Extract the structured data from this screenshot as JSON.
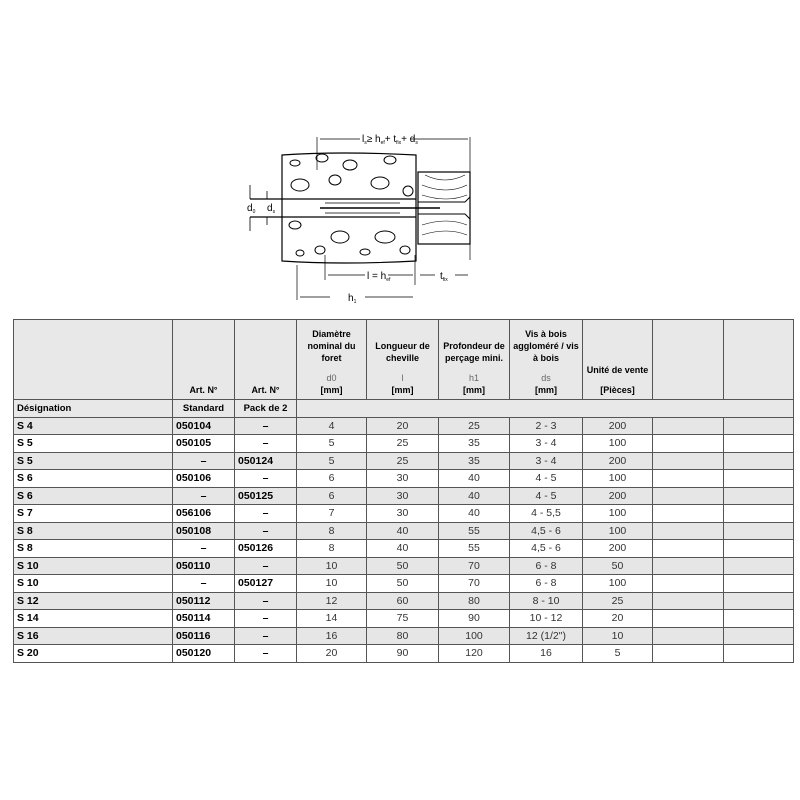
{
  "diagram": {
    "labels": {
      "ls": "l",
      "ls_formula": "≥ h",
      "hef_sub": "ef",
      "plus_tfix": "+ t",
      "tfix_sub": "fix",
      "plus_ds": "+ d",
      "ds_sub": "s",
      "d0": "d",
      "d0_sub": "0",
      "ds": "d",
      "l_eq_hef": "l = h",
      "h1": "h",
      "h1_sub": "1",
      "tfix": "t"
    }
  },
  "table": {
    "headers": [
      {
        "title": "",
        "sym": "",
        "unit": "Art. N°"
      },
      {
        "title": "",
        "sym": "",
        "unit": "Art. N°"
      },
      {
        "title": "Diamètre nominal du foret",
        "sym": "d0",
        "unit": "[mm]"
      },
      {
        "title": "Longueur de cheville",
        "sym": "l",
        "unit": "[mm]"
      },
      {
        "title": "Profondeur de perçage mini.",
        "sym": "h1",
        "unit": "[mm]"
      },
      {
        "title": "Vis à bois aggloméré / vis à bois",
        "sym": "ds",
        "unit": "[mm]"
      },
      {
        "title": "Unité de vente",
        "sym": "",
        "unit": "[Pièces]"
      }
    ],
    "subheaders": [
      "Désignation",
      "Standard",
      "Pack de 2"
    ],
    "rows": [
      [
        "S 4",
        "050104",
        "–",
        "4",
        "20",
        "25",
        "2 - 3",
        "200"
      ],
      [
        "S 5",
        "050105",
        "–",
        "5",
        "25",
        "35",
        "3 - 4",
        "100"
      ],
      [
        "S 5",
        "–",
        "050124",
        "5",
        "25",
        "35",
        "3 - 4",
        "200"
      ],
      [
        "S 6",
        "050106",
        "–",
        "6",
        "30",
        "40",
        "4 - 5",
        "100"
      ],
      [
        "S 6",
        "–",
        "050125",
        "6",
        "30",
        "40",
        "4 - 5",
        "200"
      ],
      [
        "S 7",
        "056106",
        "–",
        "7",
        "30",
        "40",
        "4 - 5,5",
        "100"
      ],
      [
        "S 8",
        "050108",
        "–",
        "8",
        "40",
        "55",
        "4,5 - 6",
        "100"
      ],
      [
        "S 8",
        "–",
        "050126",
        "8",
        "40",
        "55",
        "4,5 - 6",
        "200"
      ],
      [
        "S 10",
        "050110",
        "–",
        "10",
        "50",
        "70",
        "6 - 8",
        "50"
      ],
      [
        "S 10",
        "–",
        "050127",
        "10",
        "50",
        "70",
        "6 - 8",
        "100"
      ],
      [
        "S 12",
        "050112",
        "–",
        "12",
        "60",
        "80",
        "8 - 10",
        "25"
      ],
      [
        "S 14",
        "050114",
        "–",
        "14",
        "75",
        "90",
        "10 - 12",
        "20"
      ],
      [
        "S 16",
        "050116",
        "–",
        "16",
        "80",
        "100",
        "12 (1/2\")",
        "10"
      ],
      [
        "S 20",
        "050120",
        "–",
        "20",
        "90",
        "120",
        "16",
        "5"
      ]
    ]
  }
}
